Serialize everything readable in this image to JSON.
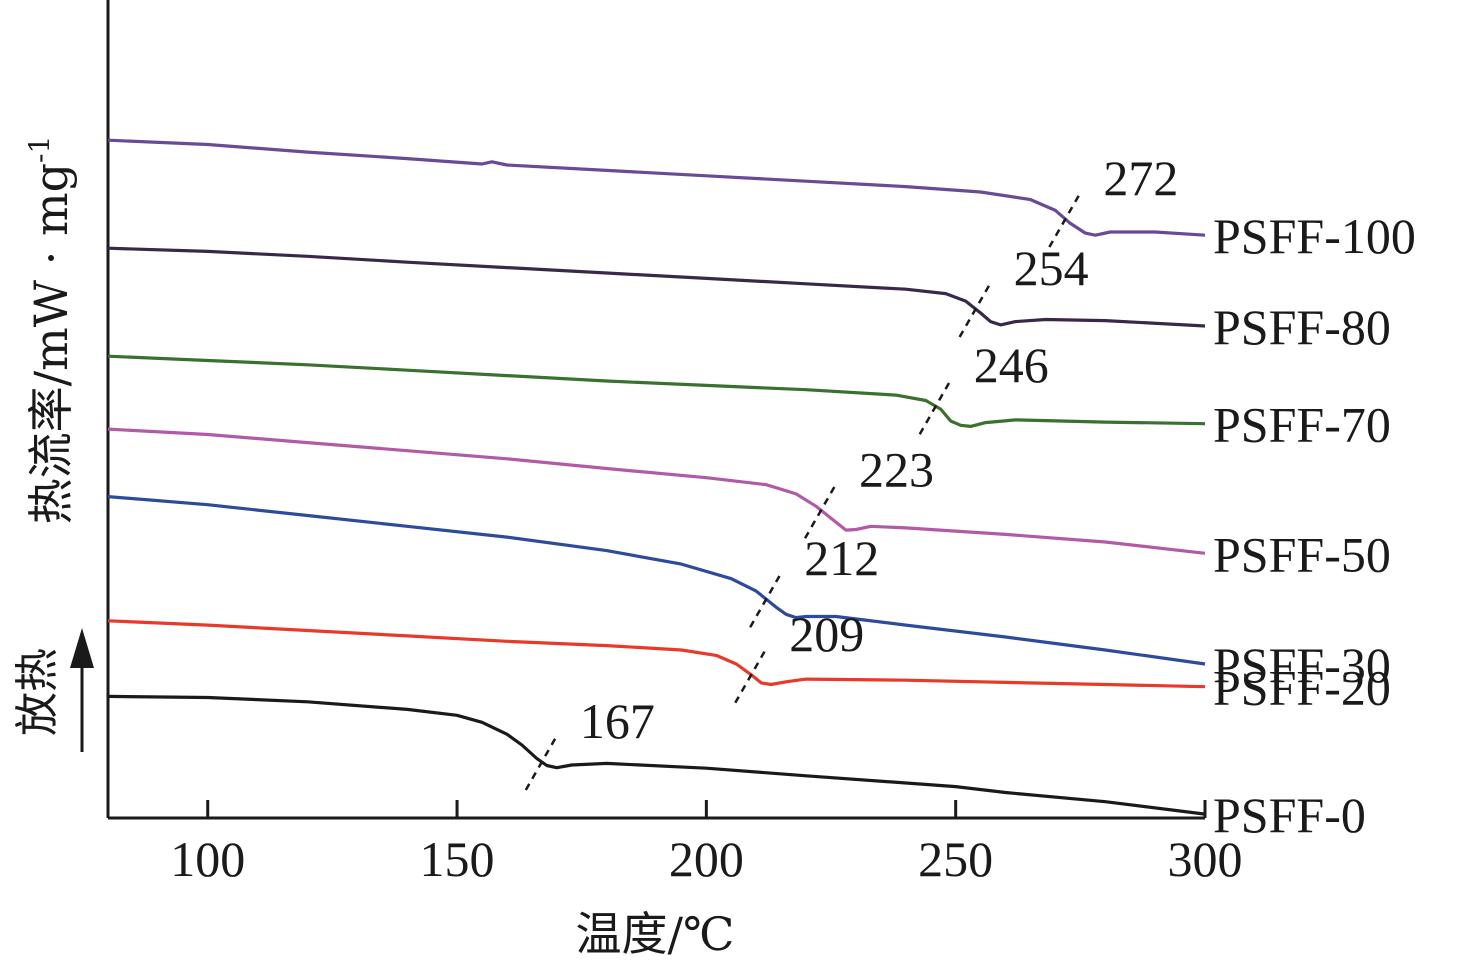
{
  "chart_data": {
    "type": "line",
    "title": "",
    "xlabel": "温度/℃",
    "ylabel": "热流率/mW · mg",
    "ylabel_superscript": "-1",
    "exo_label": "放热",
    "exo_direction": "up",
    "xlim": [
      80,
      300
    ],
    "xticks": [
      100,
      150,
      200,
      250,
      300
    ],
    "y_ticks_shown": false,
    "grid": false,
    "legend": "labels at right end of each curve",
    "series": [
      {
        "name": "PSFF-0",
        "color": "#1a1a1a",
        "tg": 167,
        "tg_label": "167",
        "points": [
          [
            80,
            0.9
          ],
          [
            100,
            0.88
          ],
          [
            120,
            0.8
          ],
          [
            140,
            0.66
          ],
          [
            150,
            0.55
          ],
          [
            155,
            0.42
          ],
          [
            160,
            0.2
          ],
          [
            163,
            0.0
          ],
          [
            166,
            -0.25
          ],
          [
            168,
            -0.38
          ],
          [
            170,
            -0.42
          ],
          [
            173,
            -0.37
          ],
          [
            180,
            -0.34
          ],
          [
            200,
            -0.43
          ],
          [
            220,
            -0.57
          ],
          [
            250,
            -0.77
          ],
          [
            260,
            -0.88
          ],
          [
            280,
            -1.05
          ],
          [
            300,
            -1.28
          ]
        ]
      },
      {
        "name": "PSFF-20",
        "color": "#e8392a",
        "tg": 209,
        "tg_label": "209",
        "points": [
          [
            80,
            2.3
          ],
          [
            100,
            2.22
          ],
          [
            120,
            2.12
          ],
          [
            140,
            2.02
          ],
          [
            160,
            1.92
          ],
          [
            180,
            1.84
          ],
          [
            195,
            1.76
          ],
          [
            202,
            1.66
          ],
          [
            206,
            1.5
          ],
          [
            209,
            1.3
          ],
          [
            211,
            1.15
          ],
          [
            213,
            1.12
          ],
          [
            216,
            1.17
          ],
          [
            220,
            1.22
          ],
          [
            240,
            1.2
          ],
          [
            260,
            1.16
          ],
          [
            280,
            1.12
          ],
          [
            300,
            1.08
          ]
        ]
      },
      {
        "name": "PSFF-30",
        "color": "#2e4a9c",
        "tg": 212,
        "tg_label": "212",
        "points": [
          [
            80,
            4.6
          ],
          [
            100,
            4.45
          ],
          [
            120,
            4.25
          ],
          [
            140,
            4.05
          ],
          [
            160,
            3.85
          ],
          [
            180,
            3.6
          ],
          [
            195,
            3.35
          ],
          [
            205,
            3.08
          ],
          [
            210,
            2.85
          ],
          [
            214,
            2.55
          ],
          [
            216,
            2.42
          ],
          [
            218,
            2.36
          ],
          [
            220,
            2.38
          ],
          [
            226,
            2.38
          ],
          [
            240,
            2.22
          ],
          [
            260,
            2.0
          ],
          [
            280,
            1.76
          ],
          [
            300,
            1.5
          ]
        ]
      },
      {
        "name": "PSFF-50",
        "color": "#b05aa8",
        "tg": 223,
        "tg_label": "223",
        "points": [
          [
            80,
            5.85
          ],
          [
            100,
            5.75
          ],
          [
            120,
            5.6
          ],
          [
            140,
            5.45
          ],
          [
            160,
            5.3
          ],
          [
            180,
            5.12
          ],
          [
            200,
            4.95
          ],
          [
            212,
            4.82
          ],
          [
            218,
            4.65
          ],
          [
            222,
            4.42
          ],
          [
            225,
            4.2
          ],
          [
            228,
            3.98
          ],
          [
            230,
            3.99
          ],
          [
            233,
            4.05
          ],
          [
            240,
            4.02
          ],
          [
            260,
            3.9
          ],
          [
            280,
            3.76
          ],
          [
            300,
            3.55
          ]
        ]
      },
      {
        "name": "PSFF-70",
        "color": "#3a7030",
        "tg": 246,
        "tg_label": "246",
        "points": [
          [
            80,
            7.2
          ],
          [
            100,
            7.12
          ],
          [
            120,
            7.04
          ],
          [
            140,
            6.94
          ],
          [
            160,
            6.84
          ],
          [
            180,
            6.74
          ],
          [
            200,
            6.66
          ],
          [
            220,
            6.58
          ],
          [
            238,
            6.48
          ],
          [
            244,
            6.38
          ],
          [
            247,
            6.22
          ],
          [
            249,
            6.0
          ],
          [
            251,
            5.92
          ],
          [
            253,
            5.9
          ],
          [
            256,
            5.97
          ],
          [
            262,
            6.02
          ],
          [
            280,
            5.98
          ],
          [
            300,
            5.95
          ]
        ]
      },
      {
        "name": "PSFF-80",
        "color": "#3a2848",
        "tg": 254,
        "tg_label": "254",
        "points": [
          [
            80,
            9.2
          ],
          [
            100,
            9.14
          ],
          [
            120,
            9.05
          ],
          [
            140,
            8.94
          ],
          [
            160,
            8.84
          ],
          [
            180,
            8.74
          ],
          [
            200,
            8.64
          ],
          [
            220,
            8.54
          ],
          [
            240,
            8.44
          ],
          [
            248,
            8.36
          ],
          [
            252,
            8.22
          ],
          [
            255,
            8.0
          ],
          [
            257,
            7.84
          ],
          [
            259,
            7.78
          ],
          [
            262,
            7.84
          ],
          [
            268,
            7.88
          ],
          [
            280,
            7.86
          ],
          [
            300,
            7.76
          ]
        ]
      },
      {
        "name": "PSFF-100",
        "color": "#6a4a96",
        "tg": 272,
        "tg_label": "272",
        "points": [
          [
            80,
            11.2
          ],
          [
            100,
            11.12
          ],
          [
            120,
            10.98
          ],
          [
            140,
            10.86
          ],
          [
            155,
            10.76
          ],
          [
            157,
            10.8
          ],
          [
            160,
            10.74
          ],
          [
            180,
            10.64
          ],
          [
            200,
            10.54
          ],
          [
            220,
            10.44
          ],
          [
            240,
            10.34
          ],
          [
            255,
            10.24
          ],
          [
            265,
            10.1
          ],
          [
            270,
            9.9
          ],
          [
            273,
            9.66
          ],
          [
            276,
            9.48
          ],
          [
            278,
            9.44
          ],
          [
            281,
            9.5
          ],
          [
            290,
            9.5
          ],
          [
            300,
            9.44
          ]
        ]
      }
    ]
  }
}
